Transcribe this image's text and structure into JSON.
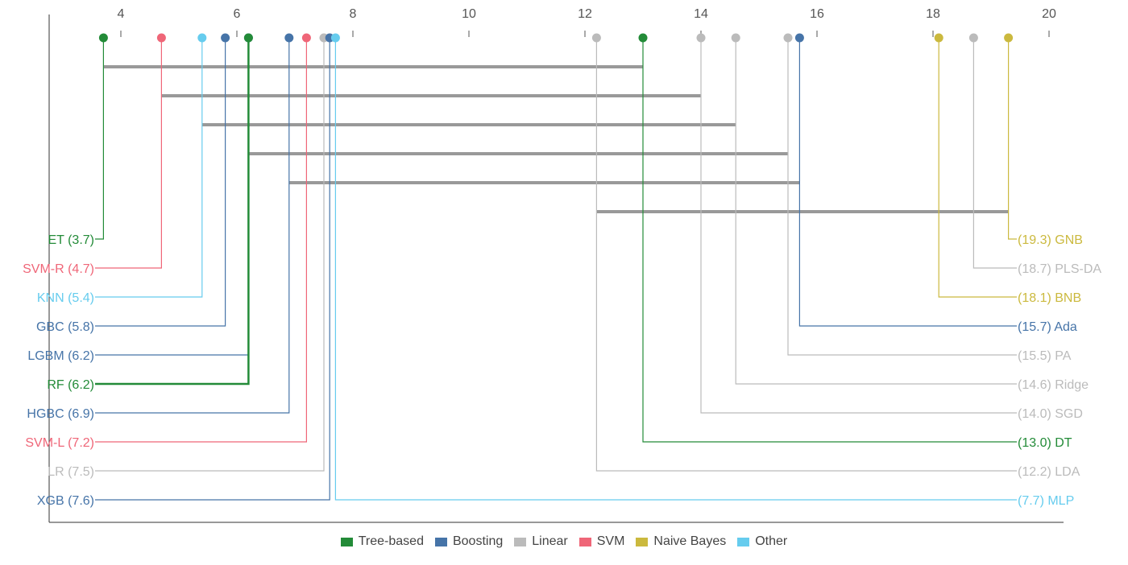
{
  "chart_data": {
    "type": "critical-difference",
    "axis": {
      "ticks": [
        4,
        6,
        8,
        10,
        12,
        14,
        16,
        18,
        20
      ],
      "position": "top"
    },
    "groups": [
      {
        "key": "tree",
        "name": "Tree-based",
        "color": "#238b38"
      },
      {
        "key": "boosting",
        "name": "Boosting",
        "color": "#4674a8"
      },
      {
        "key": "linear",
        "name": "Linear",
        "color": "#bbbbbb"
      },
      {
        "key": "svm",
        "name": "SVM",
        "color": "#ef6678"
      },
      {
        "key": "nb",
        "name": "Naive Bayes",
        "color": "#cbb93e"
      },
      {
        "key": "other",
        "name": "Other",
        "color": "#66ccee"
      }
    ],
    "left_methods": [
      {
        "name": "ET",
        "rank": 3.7,
        "group": "tree"
      },
      {
        "name": "SVM-R",
        "rank": 4.7,
        "group": "svm"
      },
      {
        "name": "KNN",
        "rank": 5.4,
        "group": "other"
      },
      {
        "name": "GBC",
        "rank": 5.8,
        "group": "boosting"
      },
      {
        "name": "LGBM",
        "rank": 6.2,
        "group": "boosting"
      },
      {
        "name": "RF",
        "rank": 6.2,
        "group": "tree"
      },
      {
        "name": "HGBC",
        "rank": 6.9,
        "group": "boosting"
      },
      {
        "name": "SVM-L",
        "rank": 7.2,
        "group": "svm"
      },
      {
        "name": "LR",
        "rank": 7.5,
        "group": "linear"
      },
      {
        "name": "XGB",
        "rank": 7.6,
        "group": "boosting"
      }
    ],
    "right_methods": [
      {
        "name": "GNB",
        "rank": 19.3,
        "group": "nb"
      },
      {
        "name": "PLS-DA",
        "rank": 18.7,
        "group": "linear"
      },
      {
        "name": "BNB",
        "rank": 18.1,
        "group": "nb"
      },
      {
        "name": "Ada",
        "rank": 15.7,
        "group": "boosting"
      },
      {
        "name": "PA",
        "rank": 15.5,
        "group": "linear"
      },
      {
        "name": "Ridge",
        "rank": 14.6,
        "group": "linear"
      },
      {
        "name": "SGD",
        "rank": 14.0,
        "group": "linear"
      },
      {
        "name": "DT",
        "rank": 13.0,
        "group": "tree"
      },
      {
        "name": "LDA",
        "rank": 12.2,
        "group": "linear"
      },
      {
        "name": "MLP",
        "rank": 7.7,
        "group": "other"
      }
    ],
    "cliques": [
      [
        3.7,
        13.0
      ],
      [
        4.7,
        14.0
      ],
      [
        5.4,
        14.6
      ],
      [
        6.2,
        15.5
      ],
      [
        6.9,
        15.7
      ],
      [
        12.2,
        19.3
      ]
    ],
    "legend_position": "bottom"
  }
}
